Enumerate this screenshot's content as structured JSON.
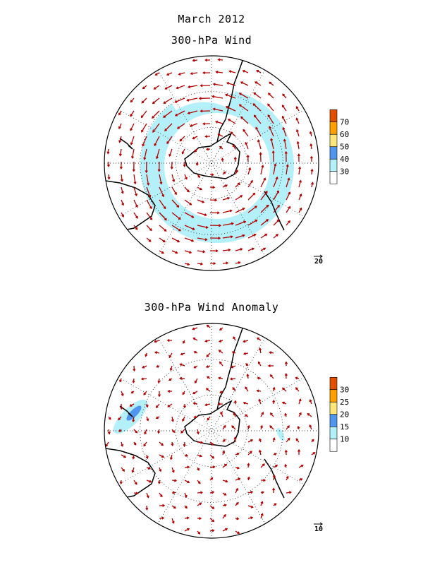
{
  "header": {
    "period": "March 2012"
  },
  "panels": [
    {
      "title": "300-hPa Wind",
      "colorbar": {
        "levels": [
          "30",
          "40",
          "50",
          "60",
          "70"
        ],
        "colors": [
          "#ffffff",
          "#b4f0fa",
          "#5096f0",
          "#ffe878",
          "#ffa000",
          "#e15000"
        ]
      },
      "reference_vector": "20",
      "jet_speed_ms": 40,
      "shading": "jet band around Antarctica exceeding 30 m/s"
    },
    {
      "title": "300-hPa Wind Anomaly",
      "colorbar": {
        "levels": [
          "10",
          "15",
          "20",
          "25",
          "30"
        ],
        "colors": [
          "#ffffff",
          "#b4f0fa",
          "#5096f0",
          "#ffe878",
          "#ffa000",
          "#e15000"
        ]
      },
      "reference_vector": "10",
      "shading": "local anomaly maxima west of South America and southern Indian Ocean"
    }
  ],
  "map": {
    "projection": "south polar stereographic",
    "vector_color": "#b40000",
    "coast_color": "#000000",
    "grid_style": "dotted"
  }
}
